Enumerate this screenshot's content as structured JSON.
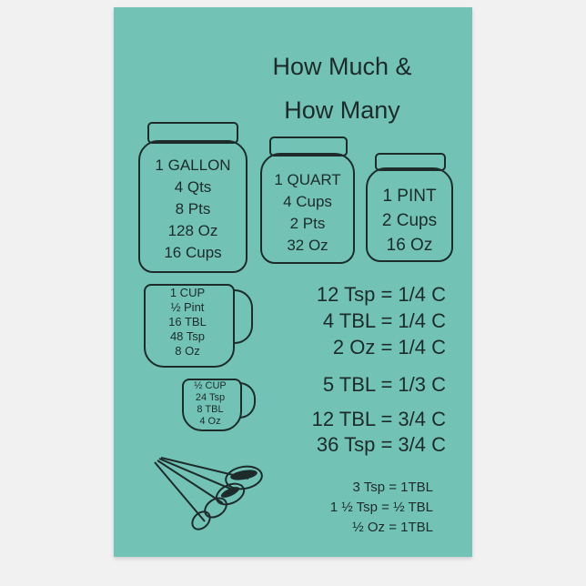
{
  "title": [
    "How Much &",
    "How Many"
  ],
  "jars": [
    {
      "name": "gallon",
      "lines": [
        "1 GALLON",
        "4 Qts",
        "8 Pts",
        "128 Oz",
        "16 Cups"
      ]
    },
    {
      "name": "quart",
      "lines": [
        "1 QUART",
        "4 Cups",
        "2 Pts",
        "32 Oz"
      ]
    },
    {
      "name": "pint",
      "lines": [
        "1 PINT",
        "2 Cups",
        "16 Oz"
      ]
    }
  ],
  "cups": [
    {
      "name": "one-cup",
      "lines": [
        "1 CUP",
        "½ Pint",
        "16 TBL",
        "48 Tsp",
        "8 Oz"
      ]
    },
    {
      "name": "half-cup",
      "lines": [
        "½ CUP",
        "24 Tsp",
        "8 TBL",
        "4 Oz"
      ]
    }
  ],
  "equivalents": [
    "12 Tsp = 1/4 C",
    "4 TBL = 1/4 C",
    "2 Oz = 1/4 C",
    "5 TBL = 1/3 C",
    "12 TBL = 3/4 C",
    "36 Tsp = 3/4 C"
  ],
  "small_equivalents": [
    "3 Tsp = 1TBL",
    "1 ½ Tsp = ½ TBL",
    "½ Oz = 1TBL"
  ],
  "colors": {
    "towel": "#72c2b6",
    "ink": "#1d2b2a",
    "background": "#f1f1f1"
  }
}
